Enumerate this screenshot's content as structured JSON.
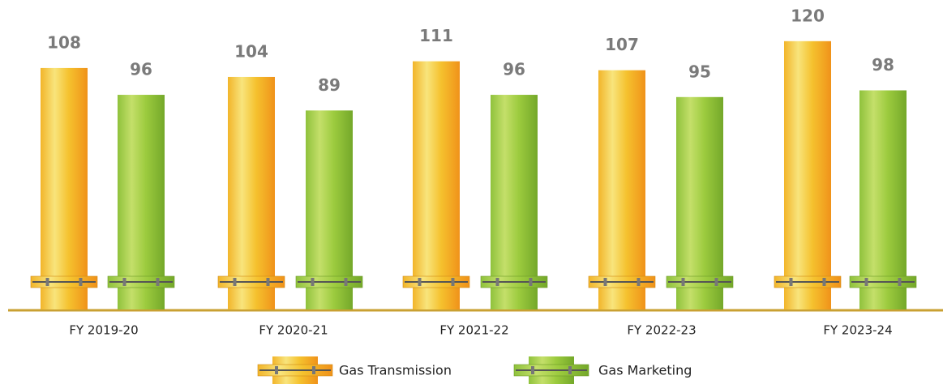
{
  "chart_data": {
    "type": "bar",
    "categories": [
      "FY 2019-20",
      "FY 2020-21",
      "FY 2021-22",
      "FY 2022-23",
      "FY 2023-24"
    ],
    "series": [
      {
        "name": "Gas Transmission",
        "color": "#f3a01c",
        "values": [
          108,
          104,
          111,
          107,
          120
        ]
      },
      {
        "name": "Gas Marketing",
        "color": "#86ba2e",
        "values": [
          96,
          89,
          96,
          95,
          98
        ]
      }
    ]
  }
}
